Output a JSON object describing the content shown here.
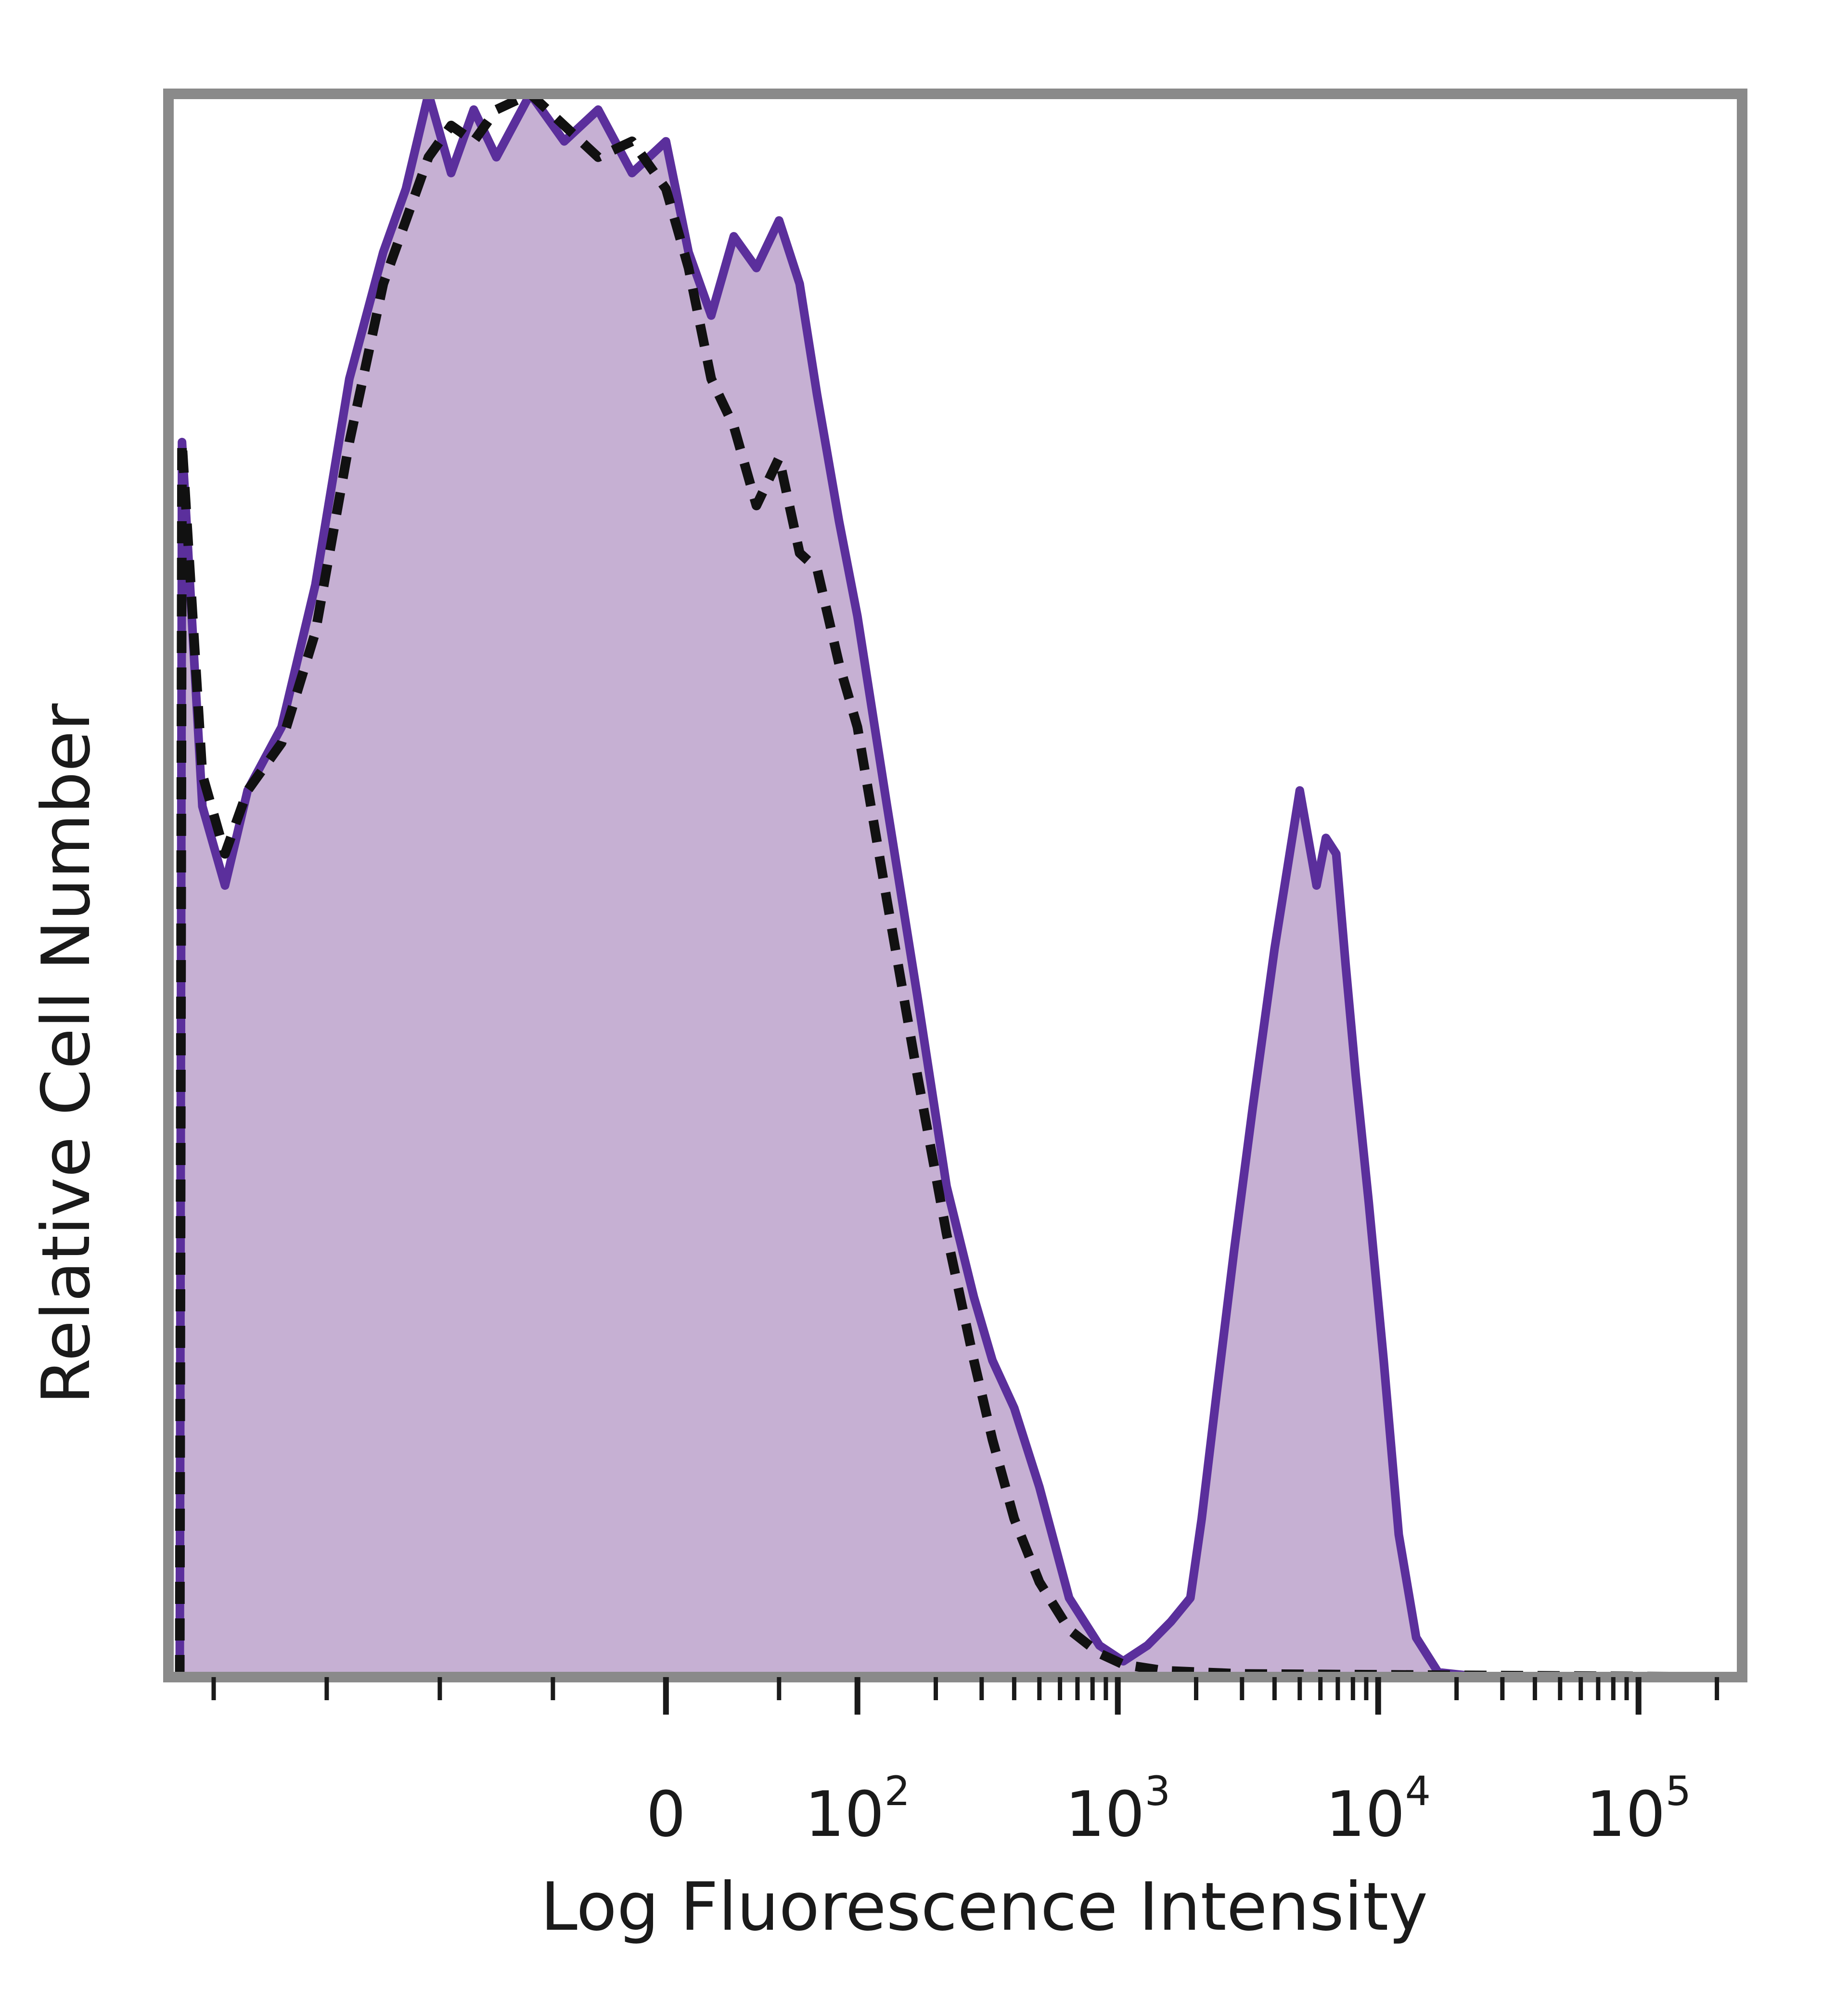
{
  "chart_data": {
    "type": "area",
    "xlabel": "Log Fluorescence Intensity",
    "ylabel": "Relative Cell Number",
    "x_scale": "biexponential",
    "x_ticks": [
      {
        "value": 0,
        "base": "0",
        "exp": ""
      },
      {
        "value": 100,
        "base": "10",
        "exp": "2"
      },
      {
        "value": 1000,
        "base": "10",
        "exp": "3"
      },
      {
        "value": 10000,
        "base": "10",
        "exp": "4"
      },
      {
        "value": 100000,
        "base": "10",
        "exp": "5"
      }
    ],
    "xlim": [
      -220,
      250000
    ],
    "ylim": [
      0,
      100
    ],
    "grid": false,
    "legend": "none",
    "series": [
      {
        "style": "filled-solid",
        "color": "#5b2f9c",
        "fill": "#c6b0d3",
        "points": [
          [
            -215,
            0
          ],
          [
            -214,
            78
          ],
          [
            -205,
            55
          ],
          [
            -195,
            50
          ],
          [
            -185,
            56
          ],
          [
            -170,
            60
          ],
          [
            -155,
            69
          ],
          [
            -140,
            82
          ],
          [
            -125,
            90
          ],
          [
            -115,
            94
          ],
          [
            -105,
            100
          ],
          [
            -95,
            95
          ],
          [
            -85,
            99
          ],
          [
            -75,
            96
          ],
          [
            -60,
            100
          ],
          [
            -45,
            97
          ],
          [
            -30,
            99
          ],
          [
            -15,
            95
          ],
          [
            0,
            97
          ],
          [
            10,
            90
          ],
          [
            20,
            86
          ],
          [
            30,
            91
          ],
          [
            40,
            89
          ],
          [
            50,
            92
          ],
          [
            60,
            88
          ],
          [
            70,
            81
          ],
          [
            85,
            73
          ],
          [
            100,
            67
          ],
          [
            130,
            55
          ],
          [
            170,
            43
          ],
          [
            220,
            31
          ],
          [
            280,
            24
          ],
          [
            330,
            20
          ],
          [
            400,
            17
          ],
          [
            500,
            12
          ],
          [
            650,
            5
          ],
          [
            850,
            2
          ],
          [
            1050,
            1
          ],
          [
            1300,
            2
          ],
          [
            1600,
            3.5
          ],
          [
            1900,
            5
          ],
          [
            2100,
            10
          ],
          [
            2400,
            18
          ],
          [
            2800,
            27
          ],
          [
            3300,
            36
          ],
          [
            4000,
            46
          ],
          [
            5000,
            56
          ],
          [
            5800,
            50
          ],
          [
            6300,
            53
          ],
          [
            6900,
            52
          ],
          [
            7500,
            45
          ],
          [
            8200,
            38
          ],
          [
            9200,
            30
          ],
          [
            10500,
            20
          ],
          [
            12000,
            9
          ],
          [
            14000,
            2.5
          ],
          [
            17000,
            0.3
          ],
          [
            25000,
            0
          ],
          [
            60000,
            0
          ],
          [
            250000,
            0
          ]
        ]
      },
      {
        "style": "dashed",
        "color": "#111111",
        "points": [
          [
            -215,
            0
          ],
          [
            -214,
            78
          ],
          [
            -205,
            57
          ],
          [
            -195,
            52
          ],
          [
            -185,
            56
          ],
          [
            -170,
            59
          ],
          [
            -155,
            66
          ],
          [
            -140,
            78
          ],
          [
            -125,
            88
          ],
          [
            -115,
            92
          ],
          [
            -105,
            96
          ],
          [
            -95,
            98
          ],
          [
            -85,
            97
          ],
          [
            -75,
            99
          ],
          [
            -60,
            100
          ],
          [
            -45,
            98
          ],
          [
            -30,
            96
          ],
          [
            -15,
            97
          ],
          [
            0,
            94
          ],
          [
            10,
            89
          ],
          [
            20,
            82
          ],
          [
            30,
            79
          ],
          [
            40,
            74
          ],
          [
            50,
            77
          ],
          [
            60,
            71
          ],
          [
            70,
            70
          ],
          [
            85,
            64
          ],
          [
            100,
            60
          ],
          [
            130,
            49
          ],
          [
            170,
            38
          ],
          [
            220,
            28
          ],
          [
            280,
            20
          ],
          [
            330,
            15
          ],
          [
            400,
            10
          ],
          [
            500,
            6
          ],
          [
            650,
            3
          ],
          [
            850,
            1.5
          ],
          [
            1050,
            0.8
          ],
          [
            1500,
            0.4
          ],
          [
            3000,
            0.2
          ],
          [
            250000,
            0
          ]
        ]
      }
    ]
  }
}
